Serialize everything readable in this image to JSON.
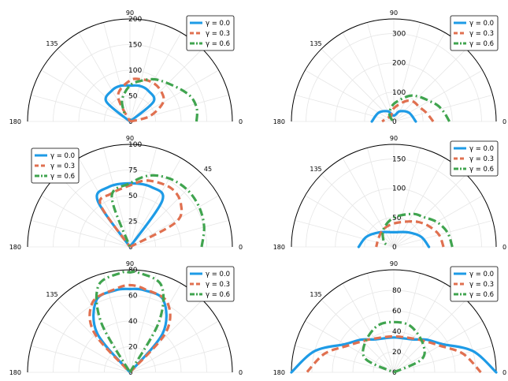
{
  "colors": {
    "s0": "#1E9BE6",
    "s1": "#E07050",
    "s2": "#40A44F",
    "grid": "#E6E6E6",
    "frame": "#000000"
  },
  "chart_data": [
    {
      "type": "line",
      "subtype": "polar-half",
      "rmax": 200,
      "r_ticks": [
        0,
        50,
        100,
        150,
        200
      ],
      "angle_labels": [
        "0",
        "90",
        "135",
        "180"
      ],
      "legend_loc": "top-right",
      "series": [
        {
          "name": "γ = 0.0",
          "style": "solid",
          "points": [
            [
              25,
              0
            ],
            [
              40,
              60
            ],
            [
              60,
              70
            ],
            [
              75,
              72
            ],
            [
              90,
              70
            ],
            [
              105,
              72
            ],
            [
              120,
              70
            ],
            [
              140,
              60
            ],
            [
              155,
              0
            ]
          ]
        },
        {
          "name": "γ = 0.3",
          "style": "dashed",
          "points": [
            [
              5,
              0
            ],
            [
              15,
              40
            ],
            [
              30,
              75
            ],
            [
              45,
              85
            ],
            [
              60,
              88
            ],
            [
              75,
              85
            ],
            [
              90,
              80
            ],
            [
              115,
              55
            ],
            [
              150,
              0
            ]
          ]
        },
        {
          "name": "γ = 0.6",
          "style": "dashdot",
          "points": [
            [
              0,
              130
            ],
            [
              10,
              133
            ],
            [
              20,
              130
            ],
            [
              30,
              120
            ],
            [
              45,
              105
            ],
            [
              60,
              95
            ],
            [
              75,
              82
            ],
            [
              90,
              70
            ],
            [
              110,
              45
            ],
            [
              130,
              15
            ]
          ]
        }
      ]
    },
    {
      "type": "line",
      "subtype": "polar-half",
      "rmax": 350,
      "r_ticks": [
        0,
        100,
        200,
        300
      ],
      "angle_labels": [
        "0",
        "90",
        "135",
        "180"
      ],
      "legend_loc": "top-right",
      "series": [
        {
          "name": "γ = 0.0",
          "style": "solid",
          "points": [
            [
              0,
              75
            ],
            [
              30,
              60
            ],
            [
              60,
              40
            ],
            [
              90,
              20
            ],
            [
              120,
              40
            ],
            [
              150,
              60
            ],
            [
              180,
              75
            ]
          ]
        },
        {
          "name": "γ = 0.3",
          "style": "dashed",
          "points": [
            [
              0,
              135
            ],
            [
              15,
              115
            ],
            [
              30,
              100
            ],
            [
              45,
              95
            ],
            [
              60,
              80
            ],
            [
              90,
              45
            ],
            [
              120,
              20
            ],
            [
              150,
              25
            ],
            [
              180,
              40
            ]
          ]
        },
        {
          "name": "γ = 0.6",
          "style": "dashdot",
          "points": [
            [
              0,
              190
            ],
            [
              10,
              175
            ],
            [
              20,
              160
            ],
            [
              30,
              140
            ],
            [
              45,
              120
            ],
            [
              60,
              100
            ],
            [
              90,
              60
            ],
            [
              120,
              30
            ],
            [
              150,
              5
            ],
            [
              180,
              0
            ]
          ]
        }
      ]
    },
    {
      "type": "line",
      "subtype": "polar-half",
      "rmax": 100,
      "r_ticks": [
        0,
        25,
        50,
        75,
        100
      ],
      "angle_labels": [
        "0",
        "45",
        "90",
        "180"
      ],
      "legend_loc": "top-left",
      "series": [
        {
          "name": "γ = 0.0",
          "style": "solid",
          "points": [
            [
              35,
              0
            ],
            [
              55,
              55
            ],
            [
              70,
              62
            ],
            [
              90,
              62
            ],
            [
              110,
              62
            ],
            [
              125,
              55
            ],
            [
              145,
              0
            ]
          ]
        },
        {
          "name": "γ = 0.3",
          "style": "dashed",
          "points": [
            [
              15,
              0
            ],
            [
              28,
              50
            ],
            [
              40,
              65
            ],
            [
              55,
              70
            ],
            [
              75,
              67
            ],
            [
              90,
              60
            ],
            [
              110,
              55
            ],
            [
              125,
              50
            ],
            [
              160,
              0
            ]
          ]
        },
        {
          "name": "γ = 0.6",
          "style": "dashdot",
          "points": [
            [
              0,
              70
            ],
            [
              15,
              75
            ],
            [
              30,
              78
            ],
            [
              45,
              79
            ],
            [
              60,
              77
            ],
            [
              75,
              72
            ],
            [
              90,
              62
            ],
            [
              110,
              52
            ],
            [
              140,
              0
            ]
          ]
        }
      ]
    },
    {
      "type": "line",
      "subtype": "polar-half",
      "rmax": 175,
      "r_ticks": [
        0,
        50,
        100,
        150
      ],
      "angle_labels": [
        "0",
        "90",
        "135",
        "180"
      ],
      "legend_loc": "top-right",
      "series": [
        {
          "name": "γ = 0.0",
          "style": "solid",
          "points": [
            [
              0,
              60
            ],
            [
              20,
              50
            ],
            [
              45,
              35
            ],
            [
              90,
              25
            ],
            [
              135,
              35
            ],
            [
              160,
              50
            ],
            [
              180,
              60
            ]
          ]
        },
        {
          "name": "γ = 0.3",
          "style": "dashed",
          "points": [
            [
              0,
              85
            ],
            [
              15,
              80
            ],
            [
              30,
              70
            ],
            [
              45,
              60
            ],
            [
              60,
              50
            ],
            [
              90,
              40
            ],
            [
              120,
              35
            ],
            [
              150,
              30
            ],
            [
              180,
              30
            ]
          ]
        },
        {
          "name": "γ = 0.6",
          "style": "dashdot",
          "points": [
            [
              0,
              100
            ],
            [
              15,
              95
            ],
            [
              30,
              85
            ],
            [
              45,
              72
            ],
            [
              60,
              65
            ],
            [
              90,
              50
            ],
            [
              120,
              35
            ],
            [
              150,
              20
            ],
            [
              170,
              10
            ]
          ]
        }
      ]
    },
    {
      "type": "line",
      "subtype": "polar-half",
      "rmax": 80,
      "r_ticks": [
        0,
        20,
        40,
        60,
        80
      ],
      "angle_labels": [
        "0",
        "90",
        "135",
        "180"
      ],
      "legend_loc": "top-right",
      "series": [
        {
          "name": "γ = 0.0",
          "style": "solid",
          "points": [
            [
              38,
              0
            ],
            [
              50,
              40
            ],
            [
              65,
              62
            ],
            [
              80,
              65
            ],
            [
              90,
              65
            ],
            [
              100,
              65
            ],
            [
              115,
              62
            ],
            [
              130,
              40
            ],
            [
              142,
              0
            ]
          ]
        },
        {
          "name": "γ = 0.3",
          "style": "dashed",
          "points": [
            [
              35,
              0
            ],
            [
              48,
              42
            ],
            [
              62,
              62
            ],
            [
              80,
              66
            ],
            [
              90,
              68
            ],
            [
              100,
              66
            ],
            [
              118,
              62
            ],
            [
              132,
              42
            ],
            [
              145,
              0
            ]
          ]
        },
        {
          "name": "γ = 0.6",
          "style": "dashdot",
          "points": [
            [
              55,
              0
            ],
            [
              60,
              45
            ],
            [
              70,
              72
            ],
            [
              85,
              78
            ],
            [
              90,
              78
            ],
            [
              95,
              78
            ],
            [
              110,
              72
            ],
            [
              120,
              45
            ],
            [
              125,
              0
            ]
          ]
        }
      ]
    },
    {
      "type": "line",
      "subtype": "polar-half",
      "rmax": 100,
      "r_ticks": [
        0,
        20,
        40,
        60,
        80
      ],
      "angle_labels": [
        "0",
        "90",
        "135",
        "180"
      ],
      "legend_loc": "top-right",
      "series": [
        {
          "name": "γ = 0.0",
          "style": "solid",
          "points": [
            [
              0,
              100
            ],
            [
              15,
              80
            ],
            [
              30,
              55
            ],
            [
              45,
              45
            ],
            [
              60,
              37
            ],
            [
              90,
              34
            ],
            [
              120,
              37
            ],
            [
              135,
              45
            ],
            [
              150,
              55
            ],
            [
              165,
              80
            ],
            [
              180,
              100
            ]
          ]
        },
        {
          "name": "γ = 0.3",
          "style": "dashed",
          "points": [
            [
              0,
              85
            ],
            [
              15,
              70
            ],
            [
              30,
              52
            ],
            [
              45,
              43
            ],
            [
              60,
              38
            ],
            [
              90,
              35
            ],
            [
              120,
              38
            ],
            [
              135,
              43
            ],
            [
              150,
              52
            ],
            [
              165,
              70
            ],
            [
              180,
              85
            ]
          ]
        },
        {
          "name": "γ = 0.6",
          "style": "dashdot",
          "points": [
            [
              5,
              0
            ],
            [
              25,
              30
            ],
            [
              45,
              40
            ],
            [
              70,
              48
            ],
            [
              90,
              49
            ],
            [
              110,
              48
            ],
            [
              135,
              40
            ],
            [
              155,
              30
            ],
            [
              175,
              0
            ]
          ]
        }
      ]
    }
  ]
}
